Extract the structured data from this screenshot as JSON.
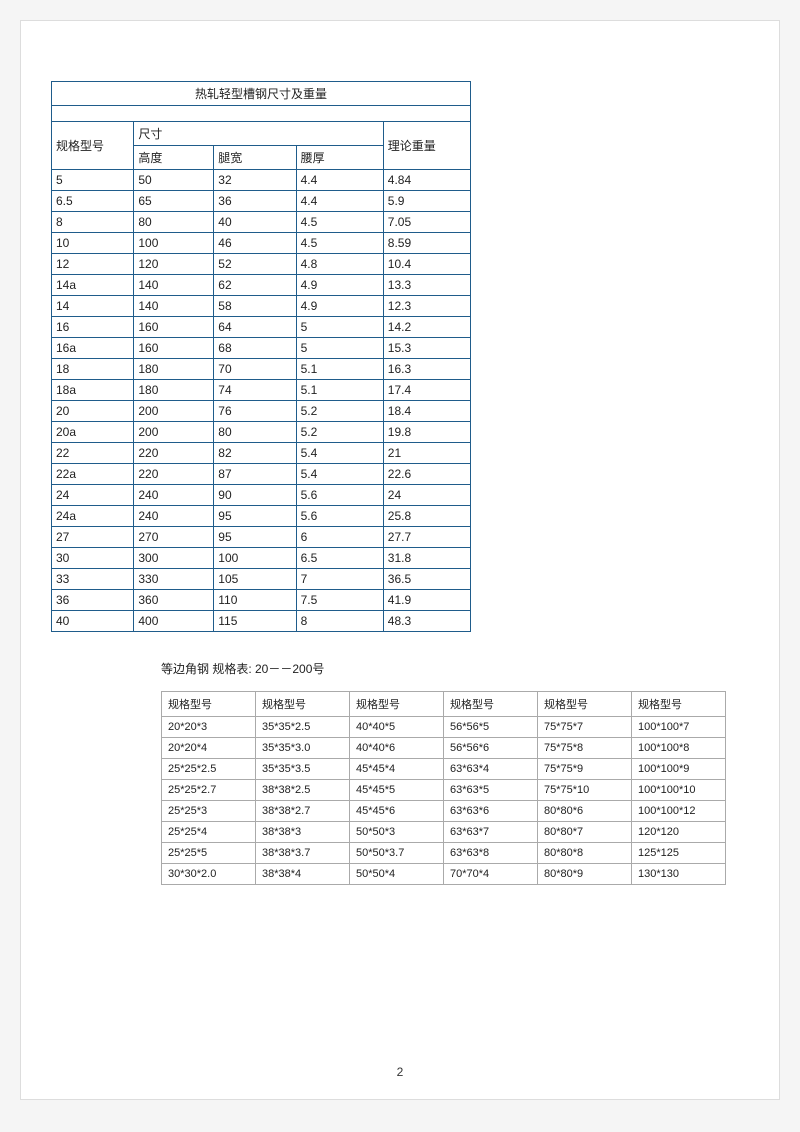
{
  "page_number": "2",
  "table1": {
    "title": "热轧轻型槽钢尺寸及重量",
    "header": {
      "spec": "规格型号",
      "size": "尺寸",
      "height": "高度",
      "width": "腿宽",
      "thick": "腰厚",
      "weight": "理论重量"
    },
    "rows": [
      [
        "5",
        "50",
        "32",
        "4.4",
        "4.84"
      ],
      [
        "6.5",
        "65",
        "36",
        "4.4",
        "5.9"
      ],
      [
        "8",
        "80",
        "40",
        "4.5",
        "7.05"
      ],
      [
        "10",
        "100",
        "46",
        "4.5",
        "8.59"
      ],
      [
        "12",
        "120",
        "52",
        "4.8",
        "10.4"
      ],
      [
        "14a",
        "140",
        "62",
        "4.9",
        "13.3"
      ],
      [
        "14",
        "140",
        "58",
        "4.9",
        "12.3"
      ],
      [
        "16",
        "160",
        "64",
        "5",
        "14.2"
      ],
      [
        "16a",
        "160",
        "68",
        "5",
        "15.3"
      ],
      [
        "18",
        "180",
        "70",
        "5.1",
        "16.3"
      ],
      [
        "18a",
        "180",
        "74",
        "5.1",
        "17.4"
      ],
      [
        "20",
        "200",
        "76",
        "5.2",
        "18.4"
      ],
      [
        "20a",
        "200",
        "80",
        "5.2",
        "19.8"
      ],
      [
        "22",
        "220",
        "82",
        "5.4",
        "21"
      ],
      [
        "22a",
        "220",
        "87",
        "5.4",
        "22.6"
      ],
      [
        "24",
        "240",
        "90",
        "5.6",
        "24"
      ],
      [
        "24a",
        "240",
        "95",
        "5.6",
        "25.8"
      ],
      [
        "27",
        "270",
        "95",
        "6",
        "27.7"
      ],
      [
        "30",
        "300",
        "100",
        "6.5",
        "31.8"
      ],
      [
        "33",
        "330",
        "105",
        "7",
        "36.5"
      ],
      [
        "36",
        "360",
        "110",
        "7.5",
        "41.9"
      ],
      [
        "40",
        "400",
        "115",
        "8",
        "48.3"
      ]
    ],
    "border_color": "#1f5c8b"
  },
  "section2_title": "等边角钢 规格表: 20－－200号",
  "table2": {
    "header_label": "规格型号",
    "rows": [
      [
        "20*20*3",
        "35*35*2.5",
        "40*40*5",
        "56*56*5",
        "75*75*7",
        "100*100*7"
      ],
      [
        "20*20*4",
        "35*35*3.0",
        "40*40*6",
        "56*56*6",
        "75*75*8",
        "100*100*8"
      ],
      [
        "25*25*2.5",
        "35*35*3.5",
        "45*45*4",
        "63*63*4",
        "75*75*9",
        "100*100*9"
      ],
      [
        "25*25*2.7",
        "38*38*2.5",
        "45*45*5",
        "63*63*5",
        "75*75*10",
        "100*100*10"
      ],
      [
        "25*25*3",
        "38*38*2.7",
        "45*45*6",
        "63*63*6",
        "80*80*6",
        "100*100*12"
      ],
      [
        "25*25*4",
        "38*38*3",
        "50*50*3",
        "63*63*7",
        "80*80*7",
        "120*120"
      ],
      [
        "25*25*5",
        "38*38*3.7",
        "50*50*3.7",
        "63*63*8",
        "80*80*8",
        "125*125"
      ],
      [
        "30*30*2.0",
        "38*38*4",
        "50*50*4",
        "70*70*4",
        "80*80*9",
        "130*130"
      ]
    ],
    "border_color": "#aaaaaa"
  }
}
